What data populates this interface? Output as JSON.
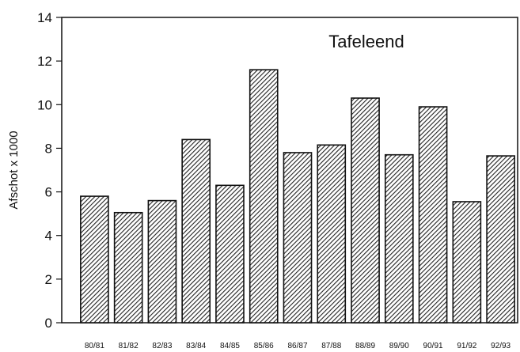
{
  "chart_data": {
    "type": "bar",
    "title": "Tafeleend",
    "xlabel": "",
    "ylabel": "Afschot x 1000",
    "categories": [
      "80/81",
      "81/82",
      "82/83",
      "83/84",
      "84/85",
      "85/86",
      "86/87",
      "87/88",
      "88/89",
      "89/90",
      "90/91",
      "91/92",
      "92/93"
    ],
    "values": [
      5.8,
      5.05,
      5.6,
      8.4,
      6.3,
      11.6,
      7.8,
      8.15,
      10.3,
      7.7,
      9.9,
      5.55,
      7.65
    ],
    "ylim": [
      0,
      14
    ],
    "yticks": [
      "0",
      "2",
      "4",
      "6",
      "8",
      "10",
      "12",
      "14"
    ],
    "grid": false,
    "legend": "none",
    "bar_fill": "diagonal-hatch",
    "colors": {
      "bar_stroke": "#111111",
      "hatch": "#222222",
      "background": "#ffffff"
    }
  }
}
